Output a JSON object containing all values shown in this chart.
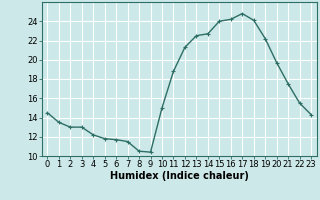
{
  "x": [
    0,
    1,
    2,
    3,
    4,
    5,
    6,
    7,
    8,
    9,
    10,
    11,
    12,
    13,
    14,
    15,
    16,
    17,
    18,
    19,
    20,
    21,
    22,
    23
  ],
  "y": [
    14.5,
    13.5,
    13.0,
    13.0,
    12.2,
    11.8,
    11.7,
    11.5,
    10.5,
    10.4,
    15.0,
    18.8,
    21.3,
    22.5,
    22.7,
    24.0,
    24.2,
    24.8,
    24.1,
    22.2,
    19.7,
    17.5,
    15.5,
    14.3
  ],
  "xlabel": "Humidex (Indice chaleur)",
  "ylim": [
    10,
    26
  ],
  "xlim": [
    -0.5,
    23.5
  ],
  "yticks": [
    10,
    12,
    14,
    16,
    18,
    20,
    22,
    24
  ],
  "xticks": [
    0,
    1,
    2,
    3,
    4,
    5,
    6,
    7,
    8,
    9,
    10,
    11,
    12,
    13,
    14,
    15,
    16,
    17,
    18,
    19,
    20,
    21,
    22,
    23
  ],
  "line_color": "#2d6e65",
  "marker": "+",
  "marker_size": 3.5,
  "marker_linewidth": 0.8,
  "bg_color": "#cce8e8",
  "grid_color": "#ffffff",
  "tick_fontsize": 6,
  "xlabel_fontsize": 7,
  "linewidth": 1.0
}
